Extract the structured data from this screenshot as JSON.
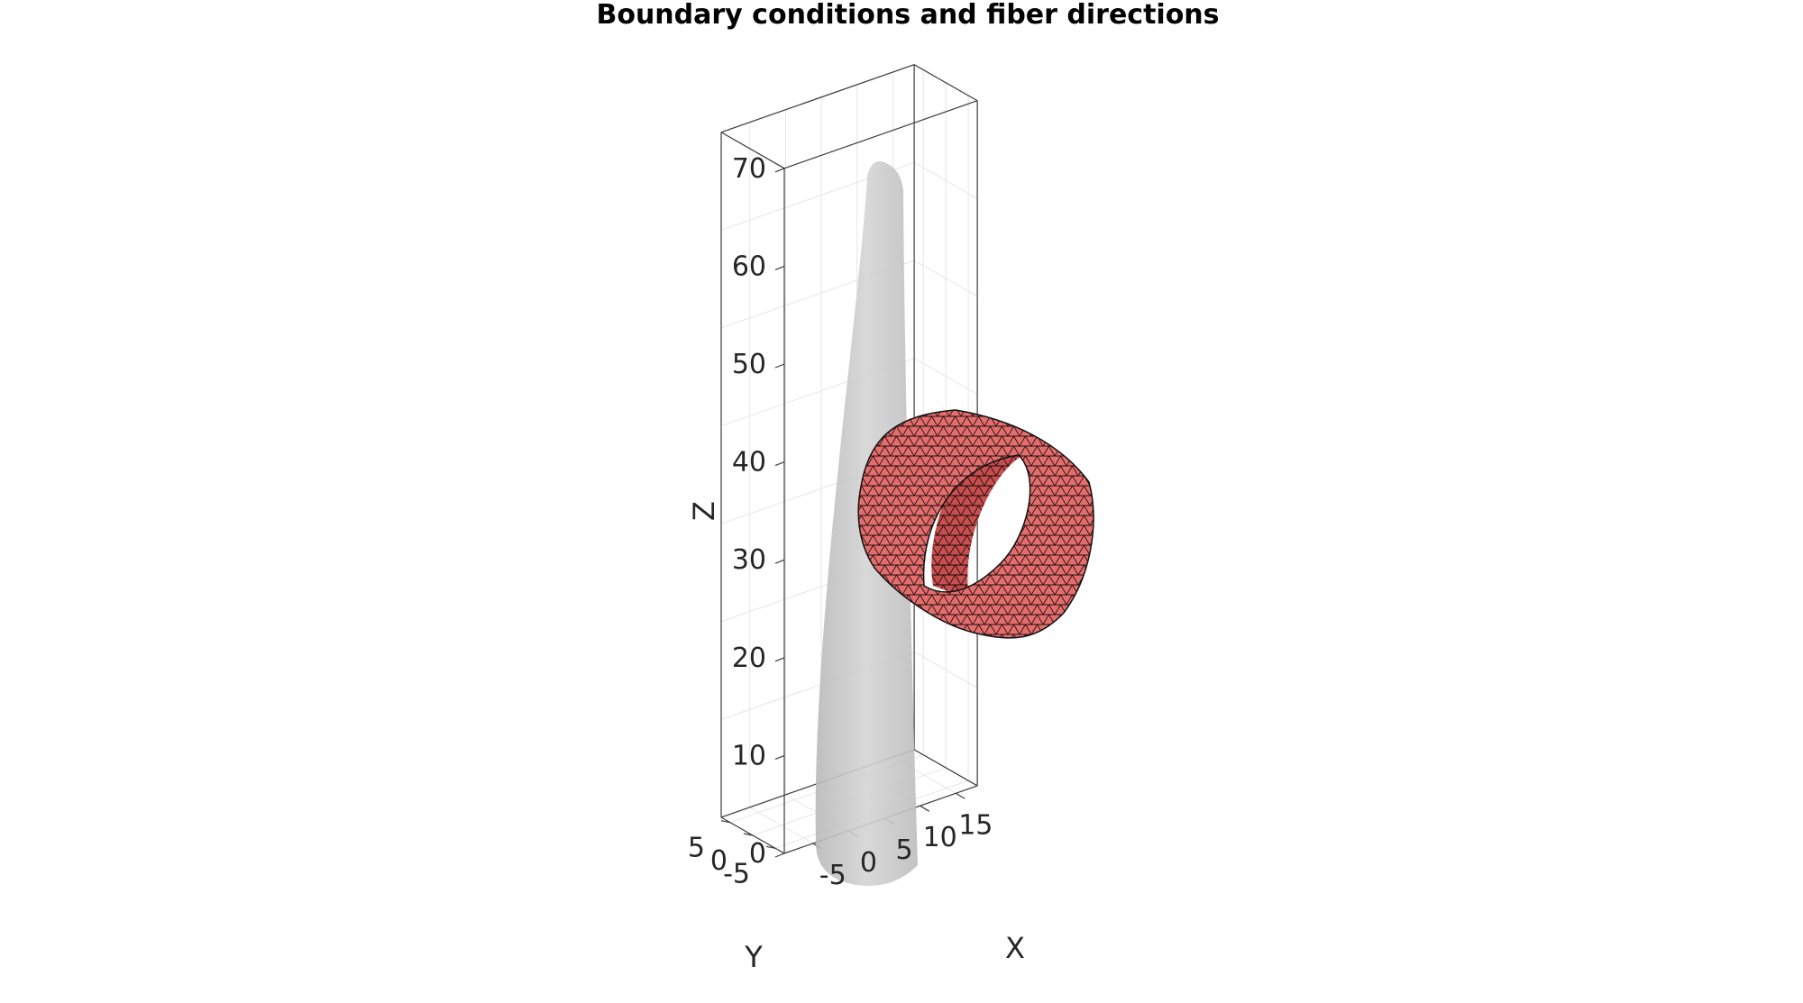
{
  "chart_data": {
    "type": "3d-surface",
    "title": "Boundary conditions and fiber directions",
    "xlabel": "X",
    "ylabel": "Y",
    "zlabel": "Z",
    "x_ticks": [
      -5,
      0,
      5,
      10,
      15
    ],
    "y_ticks": [
      -5,
      0,
      5
    ],
    "z_ticks": [
      0,
      10,
      20,
      30,
      40,
      50,
      60,
      70
    ],
    "xlim": [
      -9,
      18
    ],
    "ylim": [
      -7,
      7
    ],
    "zlim": [
      0,
      70
    ],
    "grid": true,
    "box": true,
    "objects": [
      {
        "kind": "tapered-column",
        "color": "#c8c8c8",
        "alpha": 0.85,
        "z_range": [
          0,
          70
        ],
        "base_radius": 6,
        "top_radius": 2.2
      },
      {
        "kind": "meshed-cylindrical-band",
        "color": "#e06b6b",
        "edge_color": "#000000",
        "x_range": [
          5,
          15
        ],
        "z_center": 32,
        "radius": 12
      }
    ]
  }
}
